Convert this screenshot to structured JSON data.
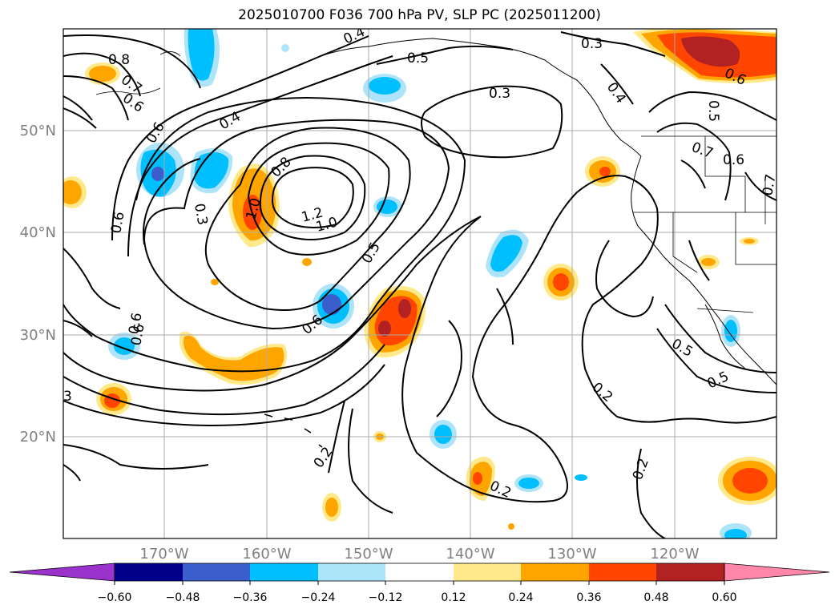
{
  "title": "2025010700 F036 700 hPa PV, SLP PC (2025011200)",
  "longitude_labels": [
    "170°W",
    "160°W",
    "150°W",
    "140°W",
    "130°W",
    "120°W"
  ],
  "latitude_labels": [
    "50°N",
    "40°N",
    "30°N",
    "20°N"
  ],
  "contour_labels": [
    {
      "text": "0.8"
    },
    {
      "text": "0.7"
    },
    {
      "text": "0.6"
    },
    {
      "text": "0.4"
    },
    {
      "text": "0.5"
    },
    {
      "text": "0.3"
    },
    {
      "text": "0.6"
    },
    {
      "text": "0.4"
    },
    {
      "text": "0.3"
    },
    {
      "text": "0.6"
    },
    {
      "text": "0.3"
    },
    {
      "text": "0.8"
    },
    {
      "text": "1.0"
    },
    {
      "text": "1.2"
    },
    {
      "text": "1.0"
    },
    {
      "text": "0.5"
    },
    {
      "text": "0.6"
    },
    {
      "text": "0.6"
    },
    {
      "text": "3"
    },
    {
      "text": "0.2"
    },
    {
      "text": "0.2"
    },
    {
      "text": "0.2"
    },
    {
      "text": "0.2"
    },
    {
      "text": "0.5"
    },
    {
      "text": "0.5"
    },
    {
      "text": "0.7"
    },
    {
      "text": "0.6"
    },
    {
      "text": "0.7"
    },
    {
      "text": "0.5"
    },
    {
      "text": "0.4"
    },
    {
      "text": "0.6"
    },
    {
      "text": "0.6"
    }
  ],
  "colorbar": {
    "tick_labels": [
      "−0.60",
      "−0.48",
      "−0.36",
      "−0.24",
      "−0.12",
      "0.12",
      "0.24",
      "0.36",
      "0.48",
      "0.60"
    ],
    "colors": [
      "#9933cc",
      "#00008b",
      "#3a5fcd",
      "#00bfff",
      "#aee4fa",
      "#ffffff",
      "#ffe98a",
      "#ffa500",
      "#ff4500",
      "#b22222",
      "#ff88aa"
    ]
  },
  "colors": {
    "positive_1": "#ffe98a",
    "positive_2": "#ffa500",
    "positive_3": "#ff4500",
    "positive_4": "#b22222",
    "negative_1": "#aee4fa",
    "negative_2": "#00bfff",
    "negative_3": "#3a5fcd",
    "negative_4": "#00008b",
    "grid": "#aaaaaa",
    "axis_labels": "#808080"
  }
}
